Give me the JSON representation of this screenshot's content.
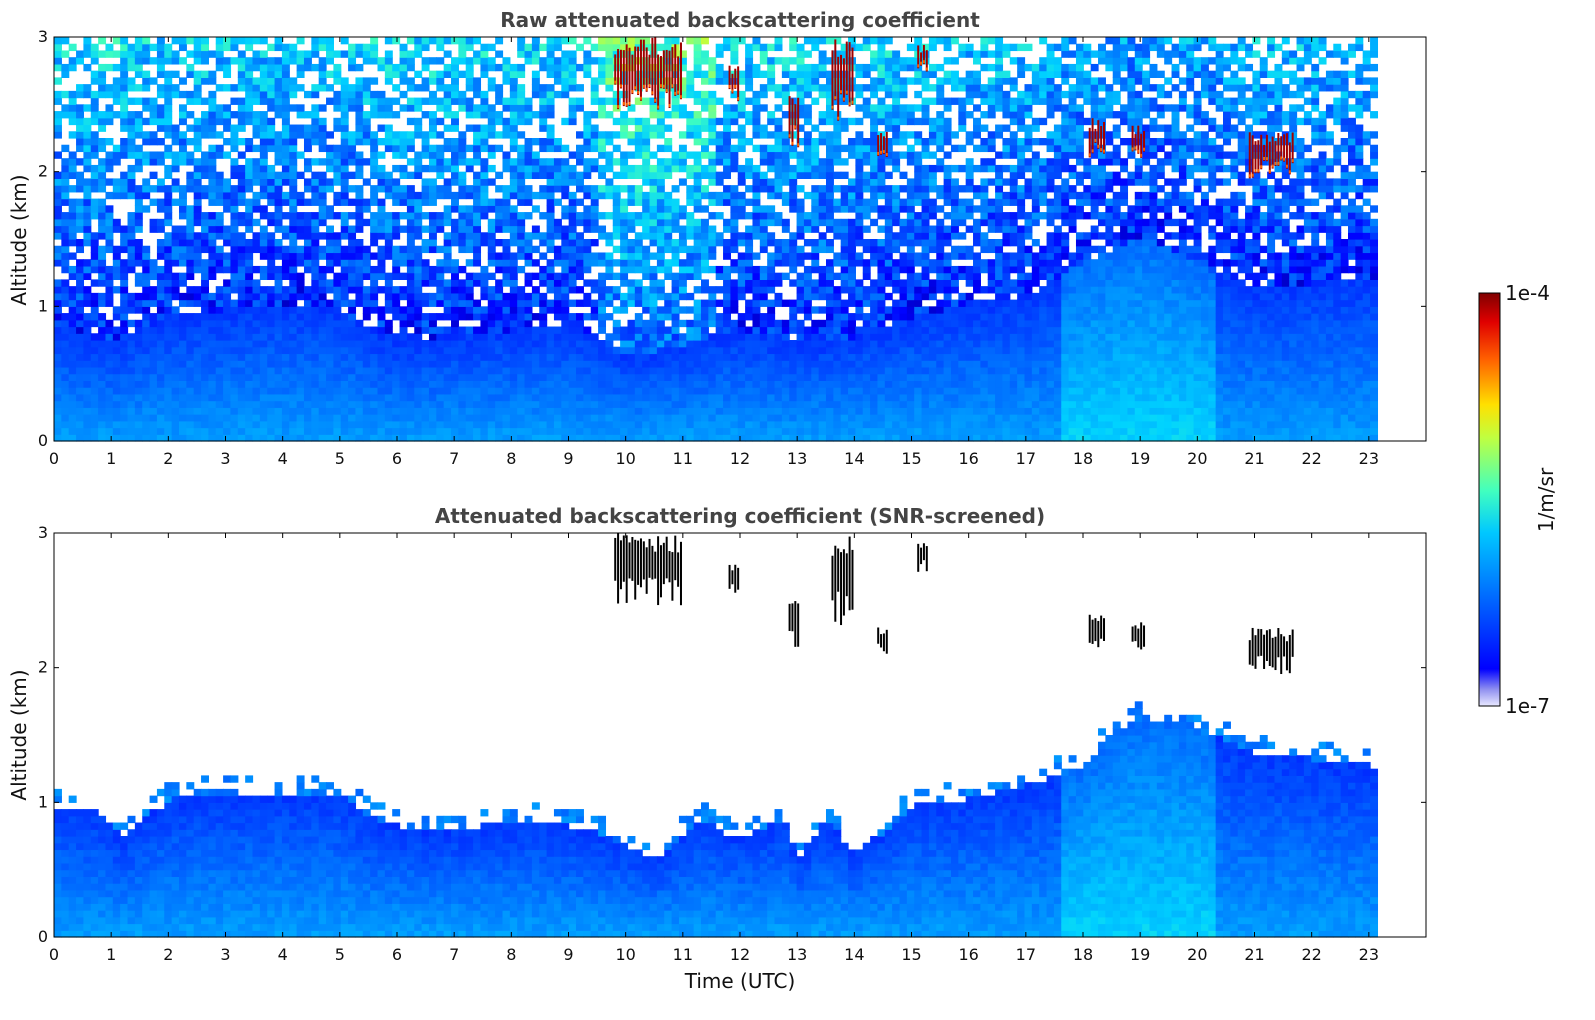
{
  "chart_data": [
    {
      "type": "heatmap",
      "title": "Raw attenuated backscattering coefficient",
      "xlabel": "",
      "ylabel": "Altitude (km)",
      "xlim": [
        0,
        24
      ],
      "ylim": [
        0,
        3
      ],
      "x_ticks": [
        "0",
        "1",
        "2",
        "3",
        "4",
        "5",
        "6",
        "7",
        "8",
        "9",
        "10",
        "11",
        "12",
        "13",
        "14",
        "15",
        "16",
        "17",
        "18",
        "19",
        "20",
        "21",
        "22",
        "23"
      ],
      "y_ticks": [
        "0",
        "1",
        "2",
        "3"
      ],
      "data_end_time": 23.15,
      "screened": false,
      "aerosol_layer_top_km": [
        [
          0,
          0.85
        ],
        [
          1,
          0.7
        ],
        [
          2,
          0.9
        ],
        [
          3,
          0.95
        ],
        [
          4,
          1.0
        ],
        [
          5,
          0.95
        ],
        [
          6,
          0.7
        ],
        [
          7,
          0.75
        ],
        [
          8,
          0.8
        ],
        [
          9,
          0.85
        ],
        [
          10,
          0.6
        ],
        [
          11,
          0.7
        ],
        [
          12,
          0.8
        ],
        [
          13,
          0.7
        ],
        [
          14,
          0.75
        ],
        [
          15,
          0.9
        ],
        [
          16,
          1.0
        ],
        [
          17,
          1.05
        ],
        [
          18,
          1.3
        ],
        [
          19,
          1.5
        ],
        [
          20,
          1.3
        ],
        [
          21,
          1.1
        ],
        [
          22,
          1.15
        ],
        [
          23,
          1.2
        ]
      ],
      "clouds": [
        {
          "t0": 9.8,
          "t1": 11.0,
          "z0": 2.45,
          "z1": 3.0
        },
        {
          "t0": 11.8,
          "t1": 12.0,
          "z0": 2.5,
          "z1": 2.8
        },
        {
          "t0": 12.85,
          "t1": 13.05,
          "z0": 2.15,
          "z1": 2.6
        },
        {
          "t0": 13.6,
          "t1": 14.0,
          "z0": 2.3,
          "z1": 3.0
        },
        {
          "t0": 14.4,
          "t1": 14.6,
          "z0": 2.1,
          "z1": 2.3
        },
        {
          "t0": 15.1,
          "t1": 15.3,
          "z0": 2.7,
          "z1": 2.95
        },
        {
          "t0": 18.1,
          "t1": 18.4,
          "z0": 2.1,
          "z1": 2.4
        },
        {
          "t0": 18.85,
          "t1": 19.1,
          "z0": 2.1,
          "z1": 2.35
        },
        {
          "t0": 20.9,
          "t1": 21.7,
          "z0": 1.95,
          "z1": 2.3
        }
      ]
    },
    {
      "type": "heatmap",
      "title": "Attenuated backscattering coefficient (SNR-screened)",
      "xlabel": "Time (UTC)",
      "ylabel": "Altitude (km)",
      "xlim": [
        0,
        24
      ],
      "ylim": [
        0,
        3
      ],
      "x_ticks": [
        "0",
        "1",
        "2",
        "3",
        "4",
        "5",
        "6",
        "7",
        "8",
        "9",
        "10",
        "11",
        "12",
        "13",
        "14",
        "15",
        "16",
        "17",
        "18",
        "19",
        "20",
        "21",
        "22",
        "23"
      ],
      "y_ticks": [
        "0",
        "1",
        "2",
        "3"
      ],
      "data_end_time": 23.15,
      "screened": true,
      "aerosol_layer_top_km": [
        [
          0,
          0.95
        ],
        [
          0.8,
          0.9
        ],
        [
          1.2,
          0.7
        ],
        [
          2,
          1.0
        ],
        [
          3,
          1.05
        ],
        [
          4,
          1.05
        ],
        [
          5,
          1.05
        ],
        [
          5.6,
          0.85
        ],
        [
          6.5,
          0.75
        ],
        [
          7.5,
          0.8
        ],
        [
          8.5,
          0.85
        ],
        [
          9.5,
          0.75
        ],
        [
          10.5,
          0.55
        ],
        [
          11.3,
          0.85
        ],
        [
          12,
          0.7
        ],
        [
          12.8,
          0.85
        ],
        [
          13,
          0.55
        ],
        [
          13.5,
          0.85
        ],
        [
          14,
          0.6
        ],
        [
          14.5,
          0.75
        ],
        [
          15,
          0.95
        ],
        [
          16,
          1.0
        ],
        [
          17,
          1.1
        ],
        [
          18,
          1.25
        ],
        [
          18.5,
          1.5
        ],
        [
          19,
          1.6
        ],
        [
          20,
          1.5
        ],
        [
          20.5,
          1.45
        ],
        [
          21,
          1.35
        ],
        [
          22,
          1.3
        ],
        [
          23,
          1.25
        ]
      ],
      "clouds": [
        {
          "t0": 9.8,
          "t1": 11.0,
          "z0": 2.45,
          "z1": 3.0
        },
        {
          "t0": 11.8,
          "t1": 12.0,
          "z0": 2.5,
          "z1": 2.8
        },
        {
          "t0": 12.85,
          "t1": 13.05,
          "z0": 2.15,
          "z1": 2.6
        },
        {
          "t0": 13.6,
          "t1": 14.0,
          "z0": 2.3,
          "z1": 3.0
        },
        {
          "t0": 14.4,
          "t1": 14.6,
          "z0": 2.1,
          "z1": 2.3
        },
        {
          "t0": 15.1,
          "t1": 15.3,
          "z0": 2.7,
          "z1": 2.95
        },
        {
          "t0": 18.1,
          "t1": 18.4,
          "z0": 2.1,
          "z1": 2.4
        },
        {
          "t0": 18.85,
          "t1": 19.1,
          "z0": 2.1,
          "z1": 2.35
        },
        {
          "t0": 20.9,
          "t1": 21.7,
          "z0": 1.95,
          "z1": 2.3
        }
      ]
    }
  ],
  "colorbar": {
    "label": "1/m/sr",
    "max_label": "1e-4",
    "min_label": "1e-7",
    "colormap": "jet"
  }
}
